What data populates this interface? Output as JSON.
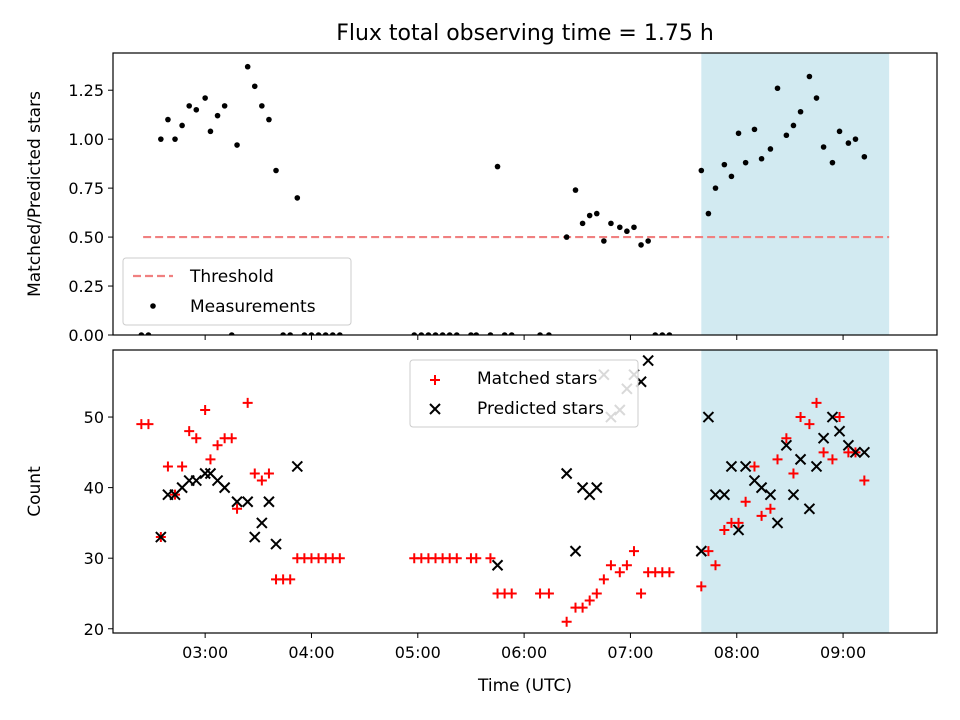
{
  "title": "Flux total observing time = 1.75 h",
  "xlabel": "Time (UTC)",
  "xticks": [
    "03:00",
    "04:00",
    "05:00",
    "06:00",
    "07:00",
    "08:00",
    "09:00"
  ],
  "colors": {
    "threshold": "#f08080",
    "measurements": "#000000",
    "matched": "#ff0000",
    "predicted": "#000000",
    "highlight": "#add8e6"
  },
  "chart_data": [
    {
      "type": "scatter",
      "ylabel": "Matched/Predicted stars",
      "ylim": [
        0,
        1.44
      ],
      "yticks": [
        "0.00",
        "0.25",
        "0.50",
        "0.75",
        "1.00",
        "1.25"
      ],
      "xlim": [
        "02:08",
        "09:53"
      ],
      "highlight_span": [
        "07:40",
        "09:26"
      ],
      "threshold": {
        "name": "Threshold",
        "value": 0.5,
        "x_range": [
          "02:25",
          "09:26"
        ]
      },
      "legend": {
        "position": "lower-left",
        "entries": [
          "Threshold",
          "Measurements"
        ]
      },
      "series": [
        {
          "name": "Measurements",
          "points": [
            [
              "02:24",
              0
            ],
            [
              "02:28",
              0
            ],
            [
              "02:35",
              1.0
            ],
            [
              "02:39",
              1.1
            ],
            [
              "02:43",
              1.0
            ],
            [
              "02:47",
              1.07
            ],
            [
              "02:51",
              1.17
            ],
            [
              "02:55",
              1.15
            ],
            [
              "03:00",
              1.21
            ],
            [
              "03:03",
              1.04
            ],
            [
              "03:07",
              1.12
            ],
            [
              "03:11",
              1.17
            ],
            [
              "03:15",
              0
            ],
            [
              "03:18",
              0.97
            ],
            [
              "03:24",
              1.37
            ],
            [
              "03:28",
              1.27
            ],
            [
              "03:32",
              1.17
            ],
            [
              "03:36",
              1.1
            ],
            [
              "03:40",
              0.84
            ],
            [
              "03:44",
              0
            ],
            [
              "03:48",
              0
            ],
            [
              "03:52",
              0.7
            ],
            [
              "03:56",
              0
            ],
            [
              "04:00",
              0
            ],
            [
              "04:04",
              0
            ],
            [
              "04:08",
              0
            ],
            [
              "04:12",
              0
            ],
            [
              "04:16",
              0
            ],
            [
              "04:58",
              0
            ],
            [
              "05:02",
              0
            ],
            [
              "05:06",
              0
            ],
            [
              "05:10",
              0
            ],
            [
              "05:14",
              0
            ],
            [
              "05:18",
              0
            ],
            [
              "05:22",
              0
            ],
            [
              "05:30",
              0
            ],
            [
              "05:33",
              0
            ],
            [
              "05:41",
              0
            ],
            [
              "05:45",
              0.86
            ],
            [
              "05:49",
              0
            ],
            [
              "05:53",
              0
            ],
            [
              "06:09",
              0
            ],
            [
              "06:14",
              0
            ],
            [
              "06:24",
              0.5
            ],
            [
              "06:29",
              0.74
            ],
            [
              "06:33",
              0.57
            ],
            [
              "06:37",
              0.61
            ],
            [
              "06:41",
              0.62
            ],
            [
              "06:45",
              0.48
            ],
            [
              "06:49",
              0.57
            ],
            [
              "06:54",
              0.55
            ],
            [
              "06:58",
              0.53
            ],
            [
              "07:02",
              0.55
            ],
            [
              "07:06",
              0.46
            ],
            [
              "07:10",
              0.48
            ],
            [
              "07:14",
              0
            ],
            [
              "07:18",
              0
            ],
            [
              "07:22",
              0
            ],
            [
              "07:40",
              0.84
            ],
            [
              "07:44",
              0.62
            ],
            [
              "07:48",
              0.75
            ],
            [
              "07:53",
              0.87
            ],
            [
              "07:57",
              0.81
            ],
            [
              "08:01",
              1.03
            ],
            [
              "08:05",
              0.88
            ],
            [
              "08:10",
              1.05
            ],
            [
              "08:14",
              0.9
            ],
            [
              "08:19",
              0.95
            ],
            [
              "08:23",
              1.26
            ],
            [
              "08:28",
              1.02
            ],
            [
              "08:32",
              1.07
            ],
            [
              "08:36",
              1.14
            ],
            [
              "08:41",
              1.32
            ],
            [
              "08:45",
              1.21
            ],
            [
              "08:49",
              0.96
            ],
            [
              "08:54",
              0.88
            ],
            [
              "08:58",
              1.04
            ],
            [
              "09:03",
              0.98
            ],
            [
              "09:07",
              1.0
            ],
            [
              "09:12",
              0.91
            ]
          ]
        }
      ]
    },
    {
      "type": "scatter",
      "ylabel": "Count",
      "ylim": [
        19.4,
        59.5
      ],
      "yticks": [
        "20",
        "30",
        "40",
        "50"
      ],
      "xlim": [
        "02:08",
        "09:53"
      ],
      "highlight_span": [
        "07:40",
        "09:26"
      ],
      "legend": {
        "position": "top-center",
        "entries": [
          "Matched stars",
          "Predicted stars"
        ]
      },
      "series": [
        {
          "name": "Matched stars",
          "marker": "plus",
          "points": [
            [
              "02:24",
              49
            ],
            [
              "02:28",
              49
            ],
            [
              "02:35",
              33
            ],
            [
              "02:39",
              43
            ],
            [
              "02:43",
              39
            ],
            [
              "02:47",
              43
            ],
            [
              "02:51",
              48
            ],
            [
              "02:55",
              47
            ],
            [
              "03:00",
              51
            ],
            [
              "03:03",
              44
            ],
            [
              "03:07",
              46
            ],
            [
              "03:11",
              47
            ],
            [
              "03:15",
              47
            ],
            [
              "03:18",
              37
            ],
            [
              "03:24",
              52
            ],
            [
              "03:28",
              42
            ],
            [
              "03:32",
              41
            ],
            [
              "03:36",
              42
            ],
            [
              "03:40",
              27
            ],
            [
              "03:44",
              27
            ],
            [
              "03:48",
              27
            ],
            [
              "03:52",
              30
            ],
            [
              "03:56",
              30
            ],
            [
              "04:00",
              30
            ],
            [
              "04:04",
              30
            ],
            [
              "04:08",
              30
            ],
            [
              "04:12",
              30
            ],
            [
              "04:16",
              30
            ],
            [
              "04:58",
              30
            ],
            [
              "05:02",
              30
            ],
            [
              "05:06",
              30
            ],
            [
              "05:10",
              30
            ],
            [
              "05:14",
              30
            ],
            [
              "05:18",
              30
            ],
            [
              "05:22",
              30
            ],
            [
              "05:30",
              30
            ],
            [
              "05:33",
              30
            ],
            [
              "05:41",
              30
            ],
            [
              "05:45",
              25
            ],
            [
              "05:49",
              25
            ],
            [
              "05:53",
              25
            ],
            [
              "06:09",
              25
            ],
            [
              "06:14",
              25
            ],
            [
              "06:24",
              21
            ],
            [
              "06:29",
              23
            ],
            [
              "06:33",
              23
            ],
            [
              "06:37",
              24
            ],
            [
              "06:41",
              25
            ],
            [
              "06:45",
              27
            ],
            [
              "06:49",
              29
            ],
            [
              "06:54",
              28
            ],
            [
              "06:58",
              29
            ],
            [
              "07:02",
              31
            ],
            [
              "07:06",
              25
            ],
            [
              "07:10",
              28
            ],
            [
              "07:14",
              28
            ],
            [
              "07:18",
              28
            ],
            [
              "07:22",
              28
            ],
            [
              "07:40",
              26
            ],
            [
              "07:44",
              31
            ],
            [
              "07:48",
              29
            ],
            [
              "07:53",
              34
            ],
            [
              "07:57",
              35
            ],
            [
              "08:01",
              35
            ],
            [
              "08:05",
              38
            ],
            [
              "08:10",
              43
            ],
            [
              "08:14",
              36
            ],
            [
              "08:19",
              37
            ],
            [
              "08:23",
              44
            ],
            [
              "08:28",
              47
            ],
            [
              "08:32",
              42
            ],
            [
              "08:36",
              50
            ],
            [
              "08:41",
              49
            ],
            [
              "08:45",
              52
            ],
            [
              "08:49",
              45
            ],
            [
              "08:54",
              44
            ],
            [
              "08:58",
              50
            ],
            [
              "09:03",
              45
            ],
            [
              "09:07",
              45
            ],
            [
              "09:12",
              41
            ]
          ]
        },
        {
          "name": "Predicted stars",
          "marker": "x",
          "points": [
            [
              "02:35",
              33
            ],
            [
              "02:39",
              39
            ],
            [
              "02:43",
              39
            ],
            [
              "02:47",
              40
            ],
            [
              "02:51",
              41
            ],
            [
              "02:55",
              41
            ],
            [
              "03:00",
              42
            ],
            [
              "03:03",
              42
            ],
            [
              "03:07",
              41
            ],
            [
              "03:11",
              40
            ],
            [
              "03:18",
              38
            ],
            [
              "03:24",
              38
            ],
            [
              "03:28",
              33
            ],
            [
              "03:32",
              35
            ],
            [
              "03:36",
              38
            ],
            [
              "03:40",
              32
            ],
            [
              "03:52",
              43
            ],
            [
              "05:45",
              29
            ],
            [
              "06:24",
              42
            ],
            [
              "06:29",
              31
            ],
            [
              "06:33",
              40
            ],
            [
              "06:37",
              39
            ],
            [
              "06:41",
              40
            ],
            [
              "06:45",
              56
            ],
            [
              "06:49",
              50
            ],
            [
              "06:54",
              51
            ],
            [
              "06:58",
              54
            ],
            [
              "07:02",
              56
            ],
            [
              "07:06",
              55
            ],
            [
              "07:10",
              58
            ],
            [
              "07:40",
              31
            ],
            [
              "07:44",
              50
            ],
            [
              "07:48",
              39
            ],
            [
              "07:53",
              39
            ],
            [
              "07:57",
              43
            ],
            [
              "08:01",
              34
            ],
            [
              "08:05",
              43
            ],
            [
              "08:10",
              41
            ],
            [
              "08:14",
              40
            ],
            [
              "08:19",
              39
            ],
            [
              "08:23",
              35
            ],
            [
              "08:28",
              46
            ],
            [
              "08:32",
              39
            ],
            [
              "08:36",
              44
            ],
            [
              "08:41",
              37
            ],
            [
              "08:45",
              43
            ],
            [
              "08:49",
              47
            ],
            [
              "08:54",
              50
            ],
            [
              "08:58",
              48
            ],
            [
              "09:03",
              46
            ],
            [
              "09:07",
              45
            ],
            [
              "09:12",
              45
            ]
          ]
        }
      ]
    }
  ]
}
